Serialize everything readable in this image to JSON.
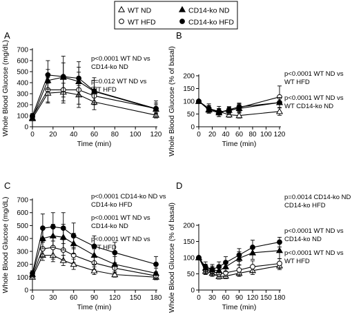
{
  "legend": {
    "entries": [
      {
        "label": "WT ND",
        "marker": "triangle-open"
      },
      {
        "label": "CD14-ko ND",
        "marker": "triangle-filled"
      },
      {
        "label": "WT HFD",
        "marker": "circle-open"
      },
      {
        "label": "CD14-ko HFD",
        "marker": "circle-filled"
      }
    ]
  },
  "chart_data": [
    {
      "panel": "A",
      "type": "line",
      "xlabel": "Time (min)",
      "ylabel": "Whole Blood Glucose (mg/dL)",
      "xlim": [
        0,
        120
      ],
      "ylim": [
        0,
        700
      ],
      "xticks": [
        0,
        20,
        40,
        60,
        80,
        100,
        120
      ],
      "yticks": [
        0,
        100,
        200,
        300,
        400,
        500,
        600,
        700
      ],
      "x": [
        0,
        15,
        30,
        45,
        60,
        120
      ],
      "series": [
        {
          "name": "WT ND",
          "marker": "triangle-open",
          "values": [
            75,
            305,
            315,
            290,
            225,
            105
          ],
          "err": [
            20,
            90,
            80,
            85,
            70,
            25
          ]
        },
        {
          "name": "WT HFD",
          "marker": "circle-open",
          "values": [
            90,
            335,
            335,
            335,
            280,
            165
          ],
          "err": [
            20,
            110,
            120,
            160,
            80,
            50
          ]
        },
        {
          "name": "CD14-ko ND",
          "marker": "triangle-filled",
          "values": [
            80,
            420,
            450,
            410,
            320,
            160
          ],
          "err": [
            15,
            100,
            130,
            130,
            100,
            40
          ]
        },
        {
          "name": "CD14-ko HFD",
          "marker": "circle-filled",
          "values": [
            100,
            470,
            455,
            440,
            325,
            165
          ],
          "err": [
            20,
            130,
            185,
            150,
            120,
            70
          ]
        }
      ],
      "annotations": [
        "p<0.0001 WT ND vs CD14-ko ND",
        "p=0.012 WT ND vs WT HFD"
      ]
    },
    {
      "panel": "B",
      "type": "line",
      "xlabel": "Time (min)",
      "ylabel": "Whole Blood Glucose (% of basal)",
      "xlim": [
        0,
        120
      ],
      "ylim": [
        0,
        200
      ],
      "xticks": [
        0,
        20,
        40,
        60,
        80,
        100,
        120
      ],
      "yticks": [
        0,
        50,
        100,
        150,
        200
      ],
      "x": [
        0,
        15,
        30,
        45,
        60,
        120
      ],
      "series": [
        {
          "name": "WT ND",
          "marker": "triangle-open",
          "values": [
            100,
            68,
            60,
            47,
            44,
            60
          ],
          "err": [
            0,
            15,
            12,
            10,
            10,
            15
          ]
        },
        {
          "name": "WT HFD",
          "marker": "circle-open",
          "values": [
            100,
            72,
            60,
            62,
            75,
            117
          ],
          "err": [
            0,
            18,
            20,
            15,
            15,
            43
          ]
        },
        {
          "name": "CD14-ko ND",
          "marker": "triangle-filled",
          "values": [
            100,
            66,
            55,
            65,
            72,
            95
          ],
          "err": [
            0,
            12,
            15,
            12,
            15,
            20
          ]
        },
        {
          "name": "CD14-ko HFD",
          "marker": "circle-filled",
          "values": [
            100,
            72,
            56,
            67,
            78,
            95
          ],
          "err": [
            0,
            12,
            10,
            12,
            15,
            20
          ]
        }
      ],
      "annotations": [
        "p<0.0001 WT ND vs WT HFD",
        "p<0.0001 WT ND vs WT CD14-ko ND"
      ]
    },
    {
      "panel": "C",
      "type": "line",
      "xlabel": "Time (min)",
      "ylabel": "Whole Blood Glucose (mg/dL)",
      "xlim": [
        0,
        180
      ],
      "ylim": [
        0,
        700
      ],
      "xticks": [
        0,
        30,
        60,
        90,
        120,
        150,
        180
      ],
      "yticks": [
        0,
        100,
        200,
        300,
        400,
        500,
        600,
        700
      ],
      "x": [
        0,
        15,
        30,
        45,
        60,
        90,
        120,
        180
      ],
      "series": [
        {
          "name": "WT ND",
          "marker": "triangle-open",
          "values": [
            100,
            270,
            270,
            230,
            200,
            150,
            120,
            100
          ],
          "err": [
            15,
            40,
            50,
            40,
            40,
            30,
            20,
            15
          ]
        },
        {
          "name": "WT HFD",
          "marker": "circle-open",
          "values": [
            110,
            320,
            330,
            310,
            270,
            210,
            170,
            110
          ],
          "err": [
            15,
            60,
            90,
            80,
            60,
            50,
            40,
            30
          ]
        },
        {
          "name": "CD14-ko ND",
          "marker": "triangle-filled",
          "values": [
            120,
            400,
            420,
            410,
            360,
            270,
            200,
            130
          ],
          "err": [
            15,
            80,
            90,
            100,
            80,
            70,
            60,
            40
          ]
        },
        {
          "name": "CD14-ko HFD",
          "marker": "circle-filled",
          "values": [
            130,
            480,
            490,
            480,
            420,
            340,
            290,
            200
          ],
          "err": [
            20,
            110,
            110,
            120,
            100,
            80,
            80,
            60
          ]
        }
      ],
      "annotations": [
        "p<0.0001 CD14-ko ND vs CD14-ko HFD",
        "p<0.0001 WT ND vs CD14-ko ND",
        "p<0.0001 WT ND vs WT HFD"
      ]
    },
    {
      "panel": "D",
      "type": "line",
      "xlabel": "Time (min)",
      "ylabel": "Whole Blood Glucose (% of basal)",
      "xlim": [
        0,
        180
      ],
      "ylim": [
        0,
        200
      ],
      "xticks": [
        0,
        30,
        60,
        90,
        120,
        150,
        180
      ],
      "yticks": [
        0,
        50,
        100,
        150,
        200
      ],
      "x": [
        0,
        15,
        30,
        45,
        60,
        90,
        120,
        180
      ],
      "series": [
        {
          "name": "WT ND",
          "marker": "triangle-open",
          "values": [
            100,
            58,
            52,
            42,
            43,
            52,
            60,
            75
          ],
          "err": [
            0,
            10,
            10,
            8,
            8,
            10,
            12,
            12
          ]
        },
        {
          "name": "WT HFD",
          "marker": "circle-open",
          "values": [
            100,
            62,
            58,
            50,
            53,
            62,
            72,
            82
          ],
          "err": [
            0,
            12,
            12,
            10,
            12,
            15,
            18,
            15
          ]
        },
        {
          "name": "CD14-ko ND",
          "marker": "triangle-filled",
          "values": [
            100,
            68,
            62,
            60,
            72,
            98,
            115,
            122
          ],
          "err": [
            0,
            12,
            12,
            12,
            15,
            20,
            20,
            25
          ]
        },
        {
          "name": "CD14-ko HFD",
          "marker": "circle-filled",
          "values": [
            100,
            72,
            64,
            72,
            85,
            108,
            132,
            148
          ],
          "err": [
            0,
            15,
            15,
            15,
            18,
            20,
            22,
            15
          ]
        }
      ],
      "annotations": [
        "p=0.0014 CD14-ko ND vs CD14-ko HFD",
        "p<0.0001 WT ND vs CD14-ko ND",
        "p<0.0001 WT ND vs WT HFD"
      ]
    }
  ]
}
